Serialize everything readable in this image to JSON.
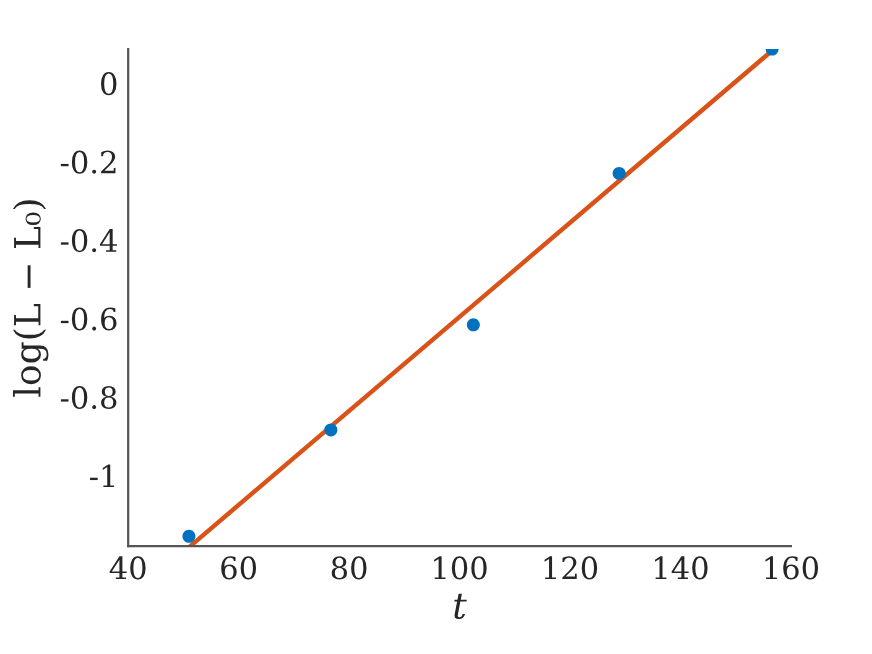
{
  "chart_data": {
    "type": "scatter",
    "xlabel": "t",
    "ylabel": "log(L − L₀)",
    "xlim": [
      40,
      160
    ],
    "xticks": [
      40,
      60,
      80,
      100,
      120,
      140,
      160
    ],
    "ylim": [
      -1.18,
      0.087
    ],
    "yticks": [
      {
        "value": -1,
        "label": "-1"
      },
      {
        "value": -0.8,
        "label": "-0.8"
      },
      {
        "value": -0.6,
        "label": "-0.6"
      },
      {
        "value": -0.4,
        "label": "-0.4"
      },
      {
        "value": -0.2,
        "label": "-0.2"
      },
      0
    ],
    "grid": false,
    "legend": false,
    "marker": "circle",
    "series": [
      {
        "color": "#0072bd",
        "x": [
          51.0,
          76.7,
          102.5,
          128.9,
          156.6
        ],
        "values": [
          -1.155,
          -0.884,
          -0.616,
          -0.23,
          0.087
        ]
      },
      {
        "type": "line",
        "color": "#d95319",
        "x": [
          51.25,
          156.6
        ],
        "values": [
          -1.18,
          0.083
        ],
        "marker": "none",
        "line_style": "solid"
      }
    ]
  }
}
